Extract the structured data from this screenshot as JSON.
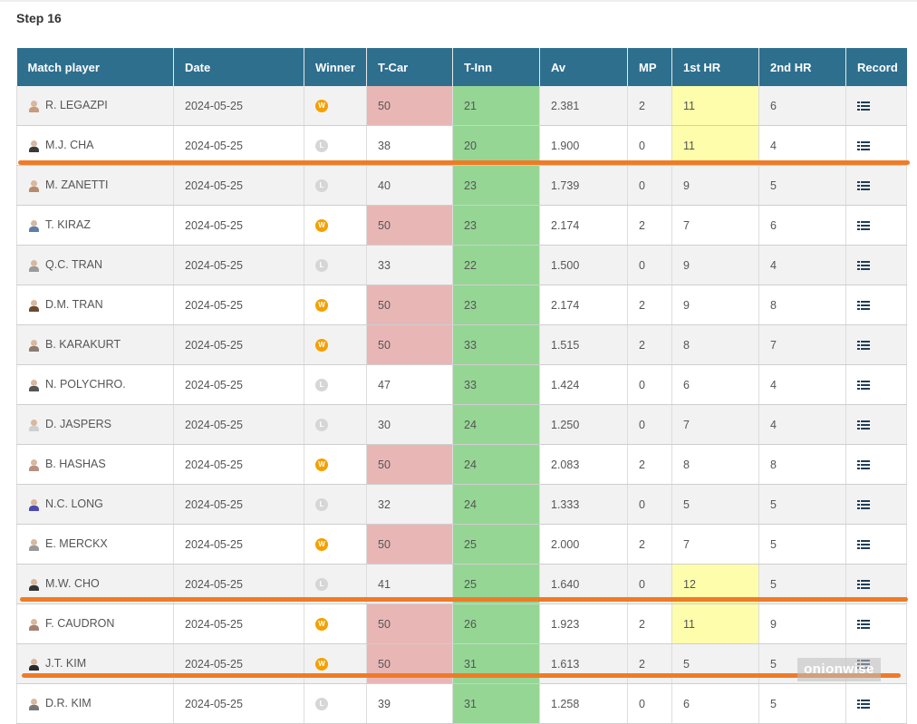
{
  "step_title": "Step 16",
  "columns": [
    "Match player",
    "Date",
    "Winner",
    "T-Car",
    "T-Inn",
    "Av",
    "MP",
    "1st HR",
    "2nd HR",
    "Record"
  ],
  "winner_labels": {
    "win": "W",
    "loss": "L"
  },
  "colors": {
    "header_bg": "#2e6f8e",
    "tcar_highlight": "#e9b6b6",
    "tinn_highlight": "#95d695",
    "hr_highlight": "#fdfdab",
    "winner_badge": "#f5a000",
    "loser_badge": "#d6d6d6",
    "separator": "#f07b26"
  },
  "rows": [
    {
      "player": "R. LEGAZPI",
      "date": "2024-05-25",
      "winner": "win",
      "tcar": "50",
      "tinn": "21",
      "av": "2.381",
      "mp": "2",
      "hr1": "11",
      "hr2": "6",
      "tcar_hl": true,
      "hr1_hl": true
    },
    {
      "player": "M.J. CHA",
      "date": "2024-05-25",
      "winner": "loss",
      "tcar": "38",
      "tinn": "20",
      "av": "1.900",
      "mp": "0",
      "hr1": "11",
      "hr2": "4",
      "tcar_hl": false,
      "hr1_hl": true
    },
    {
      "player": "M. ZANETTI",
      "date": "2024-05-25",
      "winner": "loss",
      "tcar": "40",
      "tinn": "23",
      "av": "1.739",
      "mp": "0",
      "hr1": "9",
      "hr2": "5",
      "tcar_hl": false,
      "hr1_hl": false
    },
    {
      "player": "T. KIRAZ",
      "date": "2024-05-25",
      "winner": "win",
      "tcar": "50",
      "tinn": "23",
      "av": "2.174",
      "mp": "2",
      "hr1": "7",
      "hr2": "6",
      "tcar_hl": true,
      "hr1_hl": false
    },
    {
      "player": "Q.C. TRAN",
      "date": "2024-05-25",
      "winner": "loss",
      "tcar": "33",
      "tinn": "22",
      "av": "1.500",
      "mp": "0",
      "hr1": "9",
      "hr2": "4",
      "tcar_hl": false,
      "hr1_hl": false
    },
    {
      "player": "D.M. TRAN",
      "date": "2024-05-25",
      "winner": "win",
      "tcar": "50",
      "tinn": "23",
      "av": "2.174",
      "mp": "2",
      "hr1": "9",
      "hr2": "8",
      "tcar_hl": true,
      "hr1_hl": false
    },
    {
      "player": "B. KARAKURT",
      "date": "2024-05-25",
      "winner": "win",
      "tcar": "50",
      "tinn": "33",
      "av": "1.515",
      "mp": "2",
      "hr1": "8",
      "hr2": "7",
      "tcar_hl": true,
      "hr1_hl": false
    },
    {
      "player": "N. POLYCHRO.",
      "date": "2024-05-25",
      "winner": "loss",
      "tcar": "47",
      "tinn": "33",
      "av": "1.424",
      "mp": "0",
      "hr1": "6",
      "hr2": "4",
      "tcar_hl": false,
      "hr1_hl": false
    },
    {
      "player": "D. JASPERS",
      "date": "2024-05-25",
      "winner": "loss",
      "tcar": "30",
      "tinn": "24",
      "av": "1.250",
      "mp": "0",
      "hr1": "7",
      "hr2": "4",
      "tcar_hl": false,
      "hr1_hl": false
    },
    {
      "player": "B. HASHAS",
      "date": "2024-05-25",
      "winner": "win",
      "tcar": "50",
      "tinn": "24",
      "av": "2.083",
      "mp": "2",
      "hr1": "8",
      "hr2": "8",
      "tcar_hl": true,
      "hr1_hl": false
    },
    {
      "player": "N.C. LONG",
      "date": "2024-05-25",
      "winner": "loss",
      "tcar": "32",
      "tinn": "24",
      "av": "1.333",
      "mp": "0",
      "hr1": "5",
      "hr2": "5",
      "tcar_hl": false,
      "hr1_hl": false
    },
    {
      "player": "E. MERCKX",
      "date": "2024-05-25",
      "winner": "win",
      "tcar": "50",
      "tinn": "25",
      "av": "2.000",
      "mp": "2",
      "hr1": "7",
      "hr2": "5",
      "tcar_hl": true,
      "hr1_hl": false
    },
    {
      "player": "M.W. CHO",
      "date": "2024-05-25",
      "winner": "loss",
      "tcar": "41",
      "tinn": "25",
      "av": "1.640",
      "mp": "0",
      "hr1": "12",
      "hr2": "5",
      "tcar_hl": false,
      "hr1_hl": true
    },
    {
      "player": "F. CAUDRON",
      "date": "2024-05-25",
      "winner": "win",
      "tcar": "50",
      "tinn": "26",
      "av": "1.923",
      "mp": "2",
      "hr1": "11",
      "hr2": "9",
      "tcar_hl": true,
      "hr1_hl": true
    },
    {
      "player": "J.T. KIM",
      "date": "2024-05-25",
      "winner": "win",
      "tcar": "50",
      "tinn": "31",
      "av": "1.613",
      "mp": "2",
      "hr1": "5",
      "hr2": "5",
      "tcar_hl": true,
      "hr1_hl": false
    },
    {
      "player": "D.R. KIM",
      "date": "2024-05-25",
      "winner": "loss",
      "tcar": "39",
      "tinn": "31",
      "av": "1.258",
      "mp": "0",
      "hr1": "6",
      "hr2": "5",
      "tcar_hl": false,
      "hr1_hl": false
    }
  ],
  "watermark": "onionwise"
}
